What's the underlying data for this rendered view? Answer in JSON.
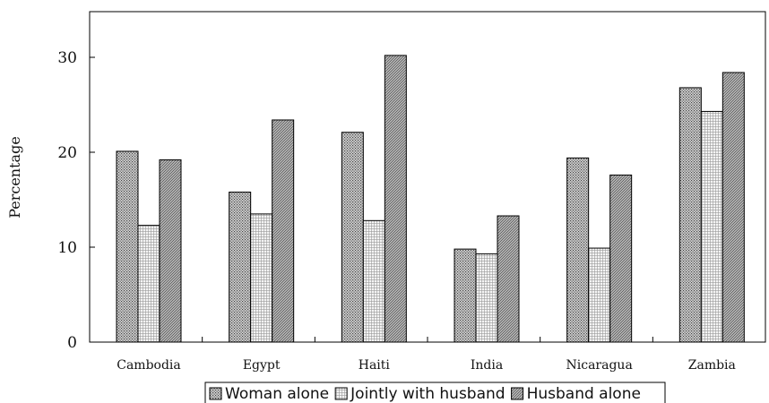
{
  "chart_data": {
    "type": "bar",
    "title": "",
    "xlabel": "",
    "ylabel": "Percentage",
    "ylim": [
      0,
      35
    ],
    "yticks": [
      0,
      10,
      20,
      30
    ],
    "grid": false,
    "legend_position": "bottom",
    "categories": [
      "Cambodia",
      "Egypt",
      "Haiti",
      "India",
      "Nicaragua",
      "Zambia"
    ],
    "series": [
      {
        "name": "Woman alone",
        "pattern": "dense-dots",
        "values": [
          20.1,
          15.8,
          22.1,
          9.8,
          19.4,
          26.8
        ]
      },
      {
        "name": "Jointly with husband",
        "pattern": "grid",
        "values": [
          12.3,
          13.5,
          12.8,
          9.3,
          9.9,
          24.3
        ]
      },
      {
        "name": "Husband alone",
        "pattern": "diagonal",
        "values": [
          19.2,
          23.4,
          30.2,
          13.3,
          17.6,
          28.4
        ]
      }
    ]
  }
}
